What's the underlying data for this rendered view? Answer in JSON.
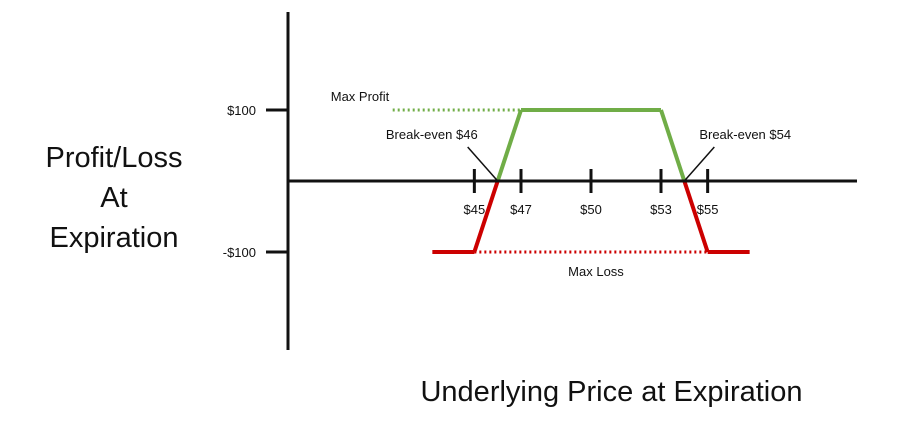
{
  "chart_data": {
    "type": "line",
    "title": "",
    "ylabel_lines": [
      "Profit/Loss",
      "At",
      "Expiration"
    ],
    "xlabel": "Underlying Price at Expiration",
    "x_ticks": [
      45,
      47,
      50,
      53,
      55
    ],
    "x_tick_labels": [
      "$45",
      "$47",
      "$50",
      "$53",
      "$55"
    ],
    "y_ticks": [
      100,
      -100
    ],
    "y_tick_labels": [
      "$100",
      "-$100"
    ],
    "xlim": [
      41.5,
      57.5
    ],
    "ylim": [
      -200,
      200
    ],
    "payoff": [
      {
        "x": 43.2,
        "y": -100
      },
      {
        "x": 45,
        "y": -100
      },
      {
        "x": 47,
        "y": 100
      },
      {
        "x": 53,
        "y": 100
      },
      {
        "x": 55,
        "y": -100
      },
      {
        "x": 56.8,
        "y": -100
      }
    ],
    "colors": {
      "profit": "#70ad47",
      "loss": "#cc0000",
      "axis": "#111111"
    },
    "reference_lines": [
      {
        "label": "Max Profit",
        "y": 100,
        "x_from": 41.5,
        "x_to": 47,
        "color": "#70ad47",
        "style": "dotted"
      },
      {
        "label": "Max Loss",
        "y": -100,
        "x_from": 45,
        "x_to": 55,
        "color": "#cc0000",
        "style": "dotted"
      }
    ],
    "annotations": [
      {
        "label": "Break-even $46",
        "x": 46,
        "y": 0
      },
      {
        "label": "Break-even $54",
        "x": 54,
        "y": 0
      }
    ]
  }
}
